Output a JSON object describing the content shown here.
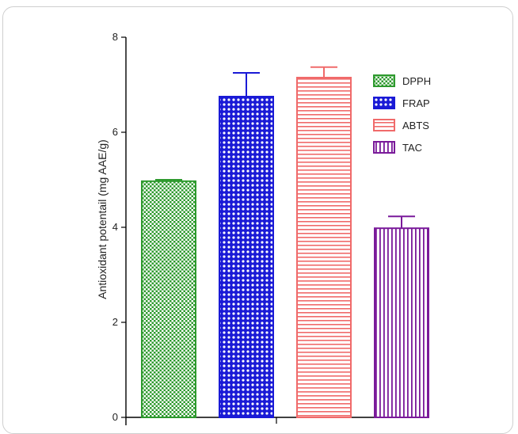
{
  "chart_data": {
    "type": "bar",
    "title": "",
    "xlabel": "",
    "ylabel": "Antioxidant potentail (mg AAE/g)",
    "ylim": [
      0,
      8
    ],
    "yticks": [
      0,
      2,
      4,
      6,
      8
    ],
    "categories": [
      "DPPH",
      "FRAP",
      "ABTS",
      "TAC"
    ],
    "values": [
      4.97,
      6.75,
      7.15,
      3.98
    ],
    "errors": [
      0.03,
      0.5,
      0.22,
      0.25
    ],
    "colors": [
      "#2e9a2e",
      "#1a1ad6",
      "#f06a6a",
      "#7a1a9a"
    ],
    "patterns": [
      "checker",
      "circles",
      "hstripes",
      "vstripes"
    ],
    "legend": {
      "position": "top-right",
      "entries": [
        "DPPH",
        "FRAP",
        "ABTS",
        "TAC"
      ]
    },
    "grid": false
  }
}
